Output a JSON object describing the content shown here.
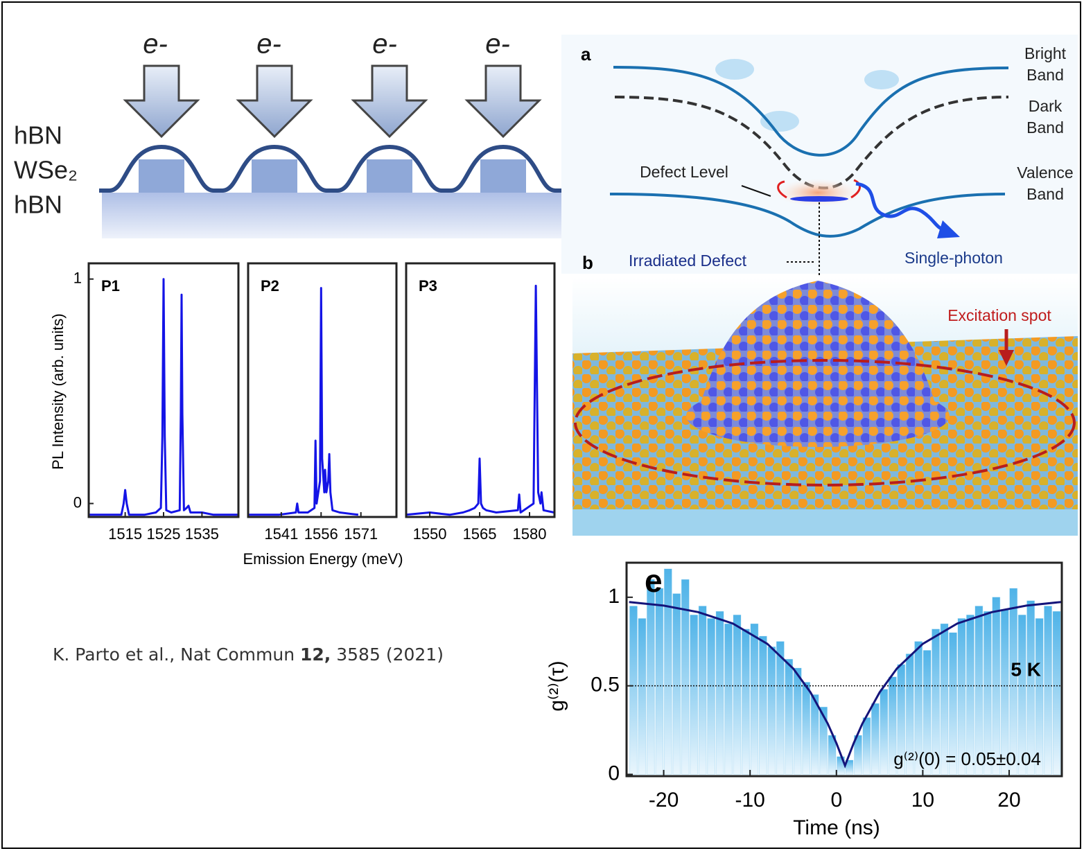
{
  "schematic": {
    "electron_labels": [
      "e-",
      "e-",
      "e-",
      "e-"
    ],
    "layers": [
      "hBN",
      "WSe₂",
      "hBN"
    ]
  },
  "band_diagram": {
    "panel_a": "a",
    "panel_b": "b",
    "bright_band": [
      "Bright",
      "Band"
    ],
    "dark_band": [
      "Dark",
      "Band"
    ],
    "valence_band": [
      "Valence",
      "Band"
    ],
    "defect_level": "Defect Level",
    "irradiated_defect": "Irradiated Defect",
    "single_photon": "Single-photon",
    "excitation_spot": "Excitation spot"
  },
  "chart_data": [
    {
      "type": "line",
      "title": "P1",
      "ylabel": "PL Intensity (arb. units)",
      "x": [
        1505.6,
        1510,
        1514,
        1514.6,
        1515,
        1515.4,
        1516,
        1520,
        1523,
        1524.3,
        1524.7,
        1525,
        1525.3,
        1525.7,
        1527,
        1529.2,
        1529.5,
        1529.7,
        1529.9,
        1530.3,
        1531,
        1531.5,
        1532,
        1535,
        1538,
        1544.4
      ],
      "series": [
        {
          "color": "#1414e6",
          "values": [
            -0.05,
            -0.05,
            -0.05,
            0.0,
            0.06,
            0.0,
            -0.05,
            -0.05,
            -0.04,
            -0.02,
            0.3,
            1.0,
            0.3,
            -0.03,
            -0.04,
            -0.03,
            0.4,
            0.93,
            0.4,
            -0.03,
            -0.02,
            -0.01,
            -0.04,
            -0.04,
            -0.05,
            -0.05
          ]
        }
      ],
      "xlim": [
        1505.5,
        1544.5
      ],
      "xticks": [
        1515,
        1525,
        1535
      ],
      "ylim": [
        -0.06,
        1.07
      ],
      "yticks": [
        0,
        1
      ]
    },
    {
      "type": "line",
      "title": "P2",
      "xlabel": "Emission Energy (meV)",
      "x": [
        1528.5,
        1540,
        1546.5,
        1547,
        1547.5,
        1551,
        1553.5,
        1553.9,
        1554.3,
        1555.6,
        1556.0,
        1556.4,
        1557.2,
        1557.5,
        1558.0,
        1558.7,
        1559.1,
        1559.5,
        1560.3,
        1563,
        1570
      ],
      "series": [
        {
          "color": "#1414e6",
          "values": [
            -0.05,
            -0.05,
            -0.04,
            0.0,
            -0.04,
            -0.04,
            -0.02,
            0.28,
            0.0,
            0.1,
            0.96,
            0.2,
            0.05,
            0.15,
            0.05,
            0.1,
            0.22,
            0.05,
            -0.03,
            -0.04,
            -0.05
          ]
        }
      ],
      "xlim": [
        1528.5,
        1584.4
      ],
      "xticks": [
        1541,
        1556,
        1571
      ],
      "ylim": [
        -0.06,
        1.07
      ]
    },
    {
      "type": "line",
      "title": "P3",
      "x": [
        1542.9,
        1550,
        1556,
        1560,
        1562,
        1563.5,
        1564.6,
        1565.0,
        1565.4,
        1566,
        1567,
        1570,
        1576.5,
        1576.9,
        1577.3,
        1581.2,
        1581.9,
        1582.6,
        1583.3,
        1583.6,
        1584.2,
        1587.4
      ],
      "series": [
        {
          "color": "#1414e6",
          "values": [
            -0.05,
            -0.04,
            -0.05,
            -0.04,
            -0.03,
            -0.02,
            0.0,
            0.2,
            0.0,
            -0.02,
            -0.03,
            -0.04,
            -0.03,
            0.04,
            -0.04,
            0.0,
            0.97,
            0.05,
            0.0,
            0.05,
            -0.03,
            -0.04
          ]
        }
      ],
      "xlim": [
        1542.9,
        1587.5
      ],
      "xticks": [
        1550,
        1565,
        1580
      ],
      "ylim": [
        -0.06,
        1.07
      ]
    },
    {
      "type": "histogram",
      "panel_label": "e",
      "temperature": "5 K",
      "g0_label": "g⁽²⁾(0) = 0.05±0.04",
      "xlabel": "Time (ns)",
      "ylabel": "g⁽²⁾(τ)",
      "color": "#4fb3e8",
      "bins": [
        -24,
        -23,
        -22,
        -21,
        -20,
        -19,
        -18,
        -17,
        -16,
        -15,
        -14,
        -13,
        -12,
        -11,
        -10,
        -9,
        -8,
        -7,
        -6,
        -5,
        -4,
        -3,
        -2,
        -1,
        0,
        1,
        2,
        3,
        4,
        5,
        6,
        7,
        8,
        9,
        10,
        11,
        12,
        13,
        14,
        15,
        16,
        17,
        18,
        19,
        20,
        21,
        22,
        23,
        24,
        25,
        26
      ],
      "values": [
        0.95,
        0.88,
        1.1,
        1.05,
        1.16,
        1.02,
        1.1,
        0.9,
        0.95,
        0.88,
        0.92,
        0.85,
        0.9,
        0.82,
        0.85,
        0.78,
        0.72,
        0.75,
        0.65,
        0.6,
        0.52,
        0.45,
        0.38,
        0.22,
        0.1,
        0.08,
        0.22,
        0.32,
        0.4,
        0.48,
        0.55,
        0.62,
        0.68,
        0.75,
        0.7,
        0.82,
        0.85,
        0.8,
        0.88,
        0.9,
        0.95,
        0.92,
        1.0,
        0.93,
        1.05,
        0.9,
        0.98,
        0.88,
        0.95,
        0.92
      ],
      "fit": {
        "color": "#14147a",
        "x": [
          -24,
          -20,
          -16,
          -12,
          -8,
          -5,
          -3,
          -1,
          0,
          1,
          2,
          3,
          5,
          7,
          10,
          14,
          18,
          22,
          26
        ],
        "values": [
          0.973,
          0.953,
          0.916,
          0.852,
          0.737,
          0.597,
          0.463,
          0.286,
          0.176,
          0.05,
          0.176,
          0.286,
          0.463,
          0.597,
          0.737,
          0.852,
          0.916,
          0.953,
          0.973
        ]
      },
      "hline": 0.5,
      "xlim": [
        -24.3,
        26.1
      ],
      "xticks": [
        -20,
        -10,
        0,
        10,
        20
      ],
      "ylim": [
        -0.01,
        1.195
      ],
      "yticks": [
        0,
        0.5,
        1
      ]
    }
  ],
  "citation": {
    "text": "K. Parto et al., Nat Commun",
    "volume": "12,",
    "pages": "3585 (2021)"
  }
}
